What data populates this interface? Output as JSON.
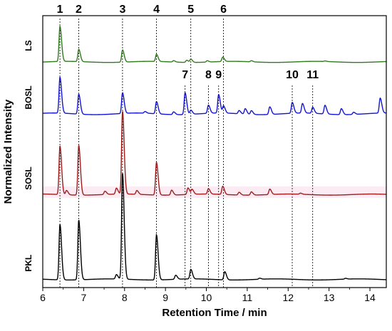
{
  "chart_data": {
    "type": "line",
    "xlabel": "Retention Time / min",
    "ylabel": "Normalized Intensity",
    "xlim": [
      6,
      14.4
    ],
    "x_ticks": [
      "6",
      "7",
      "8",
      "9",
      "10",
      "11",
      "12",
      "13",
      "14"
    ],
    "grid": false,
    "legend": "none",
    "y_tick_labels": false,
    "series": [
      {
        "name": "LS",
        "color": "#2e7d1a",
        "baseline": 0.83,
        "base_wave": 0.002,
        "peaks": [
          {
            "x": 6.42,
            "h": 0.129
          },
          {
            "x": 6.88,
            "h": 0.045
          },
          {
            "x": 7.95,
            "h": 0.045
          },
          {
            "x": 8.78,
            "h": 0.026
          },
          {
            "x": 9.2,
            "h": 0.005
          },
          {
            "x": 9.52,
            "h": 0.008
          },
          {
            "x": 9.62,
            "h": 0.012
          },
          {
            "x": 10.02,
            "h": 0.005
          },
          {
            "x": 10.4,
            "h": 0.016
          },
          {
            "x": 11.1,
            "h": 0.004
          },
          {
            "x": 12.9,
            "h": 0.002
          }
        ]
      },
      {
        "name": "BOSL",
        "color": "#1414d2",
        "baseline": 0.639,
        "base_wave": 0.003,
        "peaks": [
          {
            "x": 6.42,
            "h": 0.132
          },
          {
            "x": 6.88,
            "h": 0.073
          },
          {
            "x": 7.95,
            "h": 0.076
          },
          {
            "x": 8.5,
            "h": 0.006
          },
          {
            "x": 8.78,
            "h": 0.045
          },
          {
            "x": 9.2,
            "h": 0.01
          },
          {
            "x": 9.48,
            "h": 0.08
          },
          {
            "x": 9.62,
            "h": 0.015
          },
          {
            "x": 10.05,
            "h": 0.03
          },
          {
            "x": 10.3,
            "h": 0.068
          },
          {
            "x": 10.42,
            "h": 0.026
          },
          {
            "x": 10.8,
            "h": 0.012
          },
          {
            "x": 10.95,
            "h": 0.02
          },
          {
            "x": 11.1,
            "h": 0.014
          },
          {
            "x": 11.55,
            "h": 0.028
          },
          {
            "x": 12.1,
            "h": 0.04
          },
          {
            "x": 12.35,
            "h": 0.035
          },
          {
            "x": 12.6,
            "h": 0.022
          },
          {
            "x": 12.9,
            "h": 0.032
          },
          {
            "x": 13.3,
            "h": 0.022
          },
          {
            "x": 13.6,
            "h": 0.008
          },
          {
            "x": 14.25,
            "h": 0.055
          }
        ]
      },
      {
        "name": "SOSL",
        "color": "#a01c1c",
        "baseline": 0.342,
        "base_wave": 0.002,
        "peaks": [
          {
            "x": 6.42,
            "h": 0.179
          },
          {
            "x": 6.58,
            "h": 0.016
          },
          {
            "x": 6.88,
            "h": 0.183
          },
          {
            "x": 7.52,
            "h": 0.012
          },
          {
            "x": 7.8,
            "h": 0.022
          },
          {
            "x": 7.95,
            "h": 0.305
          },
          {
            "x": 8.3,
            "h": 0.014
          },
          {
            "x": 8.78,
            "h": 0.12
          },
          {
            "x": 9.15,
            "h": 0.018
          },
          {
            "x": 9.55,
            "h": 0.024
          },
          {
            "x": 9.65,
            "h": 0.018
          },
          {
            "x": 10.05,
            "h": 0.02
          },
          {
            "x": 10.4,
            "h": 0.03
          },
          {
            "x": 10.8,
            "h": 0.01
          },
          {
            "x": 11.1,
            "h": 0.012
          },
          {
            "x": 11.55,
            "h": 0.02
          },
          {
            "x": 12.3,
            "h": 0.004
          }
        ]
      },
      {
        "name": "PKL",
        "color": "#000000",
        "baseline": 0.03,
        "base_wave": 0.002,
        "peaks": [
          {
            "x": 6.42,
            "h": 0.204
          },
          {
            "x": 6.88,
            "h": 0.22
          },
          {
            "x": 7.8,
            "h": 0.016
          },
          {
            "x": 7.95,
            "h": 0.39
          },
          {
            "x": 8.78,
            "h": 0.166
          },
          {
            "x": 9.25,
            "h": 0.015
          },
          {
            "x": 9.62,
            "h": 0.035
          },
          {
            "x": 10.45,
            "h": 0.03
          },
          {
            "x": 11.3,
            "h": 0.004
          },
          {
            "x": 13.4,
            "h": 0.003
          }
        ]
      }
    ],
    "peak_markers": [
      {
        "label": "1",
        "x": 6.42,
        "ref": "top"
      },
      {
        "label": "2",
        "x": 6.88,
        "ref": "top"
      },
      {
        "label": "3",
        "x": 7.95,
        "ref": "top"
      },
      {
        "label": "4",
        "x": 8.78,
        "ref": "top"
      },
      {
        "label": "5",
        "x": 9.62,
        "ref": "top"
      },
      {
        "label": "6",
        "x": 10.42,
        "ref": "top"
      },
      {
        "label": "7",
        "x": 9.48,
        "ref": "bosl"
      },
      {
        "label": "8",
        "x": 10.05,
        "ref": "bosl"
      },
      {
        "label": "9",
        "x": 10.3,
        "ref": "bosl"
      },
      {
        "label": "10",
        "x": 12.1,
        "ref": "bosl"
      },
      {
        "label": "11",
        "x": 12.6,
        "ref": "bosl"
      }
    ]
  }
}
